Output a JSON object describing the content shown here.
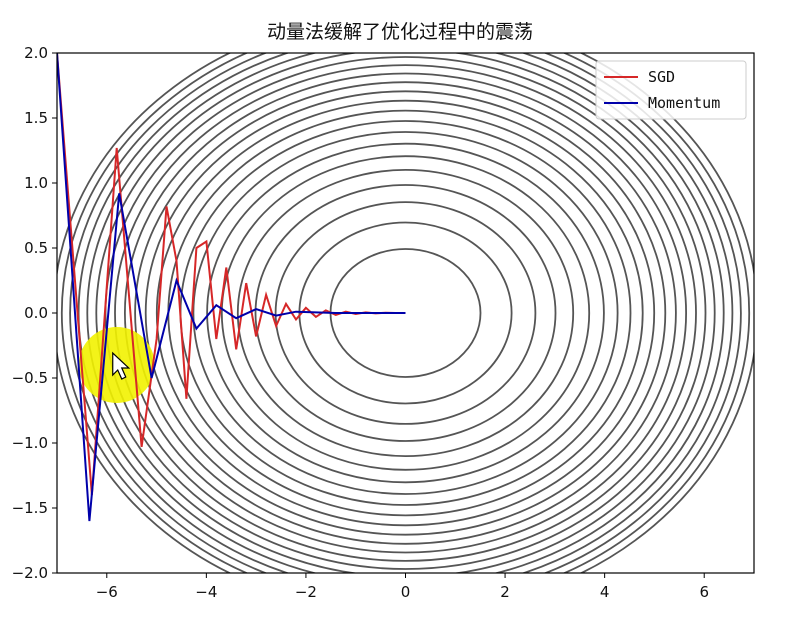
{
  "chart_data": {
    "type": "line",
    "title": "动量法缓解了优化过程中的震荡",
    "xlabel": "",
    "ylabel": "",
    "xlim": [
      -7,
      7
    ],
    "ylim": [
      -2,
      2
    ],
    "xticks": [
      -6,
      -4,
      -2,
      0,
      2,
      4,
      6
    ],
    "xtick_labels": [
      "−6",
      "−4",
      "−2",
      "0",
      "2",
      "4",
      "6"
    ],
    "yticks": [
      2.0,
      1.5,
      1.0,
      0.5,
      0.0,
      -0.5,
      -1.0,
      -1.5,
      -2.0
    ],
    "ytick_labels": [
      "2.0",
      "1.5",
      "1.0",
      "0.5",
      "0.0",
      "−0.5",
      "−1.0",
      "−1.5",
      "−2.0"
    ],
    "grid": false,
    "legend_position": "top-right",
    "background": "contour plot of an elliptical quadratic function centered at (0, 0)",
    "series": [
      {
        "name": "SGD",
        "color": "#d62728",
        "x": [
          -7.0,
          -6.3,
          -5.8,
          -5.3,
          -5.0,
          -4.8,
          -4.6,
          -4.4,
          -4.2,
          -4.0,
          -3.8,
          -3.6,
          -3.4,
          -3.2,
          -3.0,
          -2.8,
          -2.6,
          -2.4,
          -2.2,
          -2.0,
          -1.8,
          -1.6,
          -1.4,
          -1.2,
          -1.0,
          -0.8,
          -0.6,
          -0.4,
          -0.2,
          0.0
        ],
        "y": [
          2.0,
          -1.4,
          1.27,
          -1.03,
          -0.2,
          0.82,
          0.4,
          -0.66,
          0.5,
          0.55,
          -0.2,
          0.35,
          -0.28,
          0.23,
          -0.18,
          0.14,
          -0.1,
          0.07,
          -0.05,
          0.04,
          -0.03,
          0.02,
          -0.015,
          0.01,
          -0.008,
          0.005,
          -0.003,
          0.002,
          0.0,
          0.0
        ]
      },
      {
        "name": "Momentum",
        "color": "#0000aa",
        "x": [
          -7.0,
          -6.35,
          -5.75,
          -5.1,
          -4.6,
          -4.2,
          -3.8,
          -3.4,
          -3.0,
          -2.6,
          -2.2,
          -1.8,
          -1.4,
          -1.0,
          -0.6,
          -0.2,
          0.0
        ],
        "y": [
          2.0,
          -1.6,
          0.92,
          -0.5,
          0.25,
          -0.12,
          0.06,
          -0.04,
          0.03,
          -0.02,
          0.01,
          0.005,
          0.0,
          0.0,
          0.0,
          0.0,
          0.0
        ]
      }
    ]
  },
  "colors": {
    "contour": "#555555",
    "marker_highlight": "#f2f200"
  },
  "overlay": {
    "cursor_icon": "mouse-cursor-icon",
    "highlight_x": -5.8,
    "highlight_y": -0.4
  }
}
